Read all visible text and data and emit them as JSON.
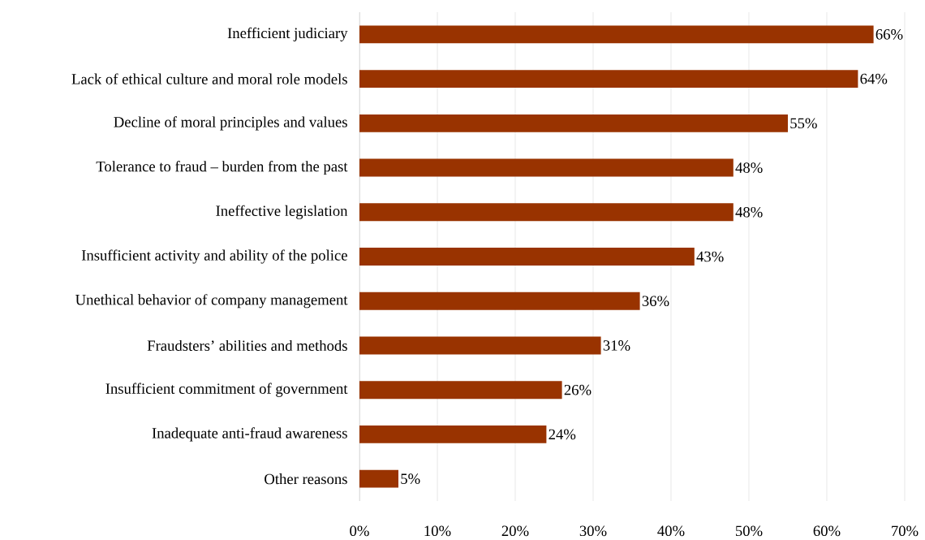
{
  "chart_data": {
    "type": "bar",
    "orientation": "horizontal",
    "categories": [
      "Inefficient judiciary",
      "Lack of ethical culture and moral role models",
      "Decline of moral principles and values",
      "Tolerance to fraud – burden from the past",
      "Ineffective legislation",
      "Insufficient activity and ability of the police",
      "Unethical behavior of company management",
      "Fraudsters’ abilities and methods",
      "Insufficient commitment of government",
      "Inadequate anti-fraud awareness",
      "Other reasons"
    ],
    "values": [
      66,
      64,
      55,
      48,
      48,
      43,
      36,
      31,
      26,
      24,
      5
    ],
    "value_labels": [
      "66%",
      "64%",
      "55%",
      "48%",
      "48%",
      "43%",
      "36%",
      "31%",
      "26%",
      "24%",
      "5%"
    ],
    "color": "#993300",
    "xlim": [
      0,
      70
    ],
    "xticks": [
      {
        "value": 0,
        "label": "0%"
      },
      {
        "value": 10,
        "label": "10%"
      },
      {
        "value": 20,
        "label": "20%"
      },
      {
        "value": 30,
        "label": "30%"
      },
      {
        "value": 40,
        "label": "40%"
      },
      {
        "value": 50,
        "label": "50%"
      },
      {
        "value": 60,
        "label": "60%"
      },
      {
        "value": 70,
        "label": "70%"
      }
    ],
    "grid": "x"
  }
}
